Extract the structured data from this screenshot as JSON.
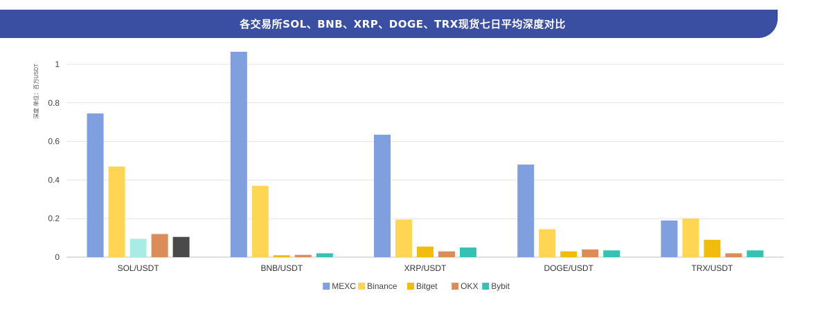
{
  "header": {
    "title": "各交易所SOL、BNB、XRP、DOGE、TRX现货七日平均深度对比"
  },
  "chart_data": {
    "type": "bar",
    "ylabel": "深度 单位：百万USDT",
    "ylim": [
      0,
      1.1
    ],
    "yticks": [
      0,
      0.2,
      0.4,
      0.6,
      0.8,
      1
    ],
    "ytick_labels": [
      "0",
      "0.2",
      "0.4",
      "0.6",
      "0.8",
      "1"
    ],
    "grid": true,
    "legend_position": "bottom",
    "categories": [
      "SOL/USDT",
      "BNB/USDT",
      "XRP/USDT",
      "DOGE/USDT",
      "TRX/USDT"
    ],
    "series": [
      {
        "name": "MEXC",
        "color": "#7f9fdf",
        "values": [
          0.745,
          1.065,
          0.635,
          0.48,
          0.19
        ]
      },
      {
        "name": "Binance",
        "color": "#ffd653",
        "values": [
          0.47,
          0.37,
          0.195,
          0.145,
          0.2
        ]
      },
      {
        "name": "Bitget",
        "color": "#f2bc0e",
        "values": [
          0.095,
          0.01,
          0.055,
          0.03,
          0.09
        ]
      },
      {
        "name": "OKX",
        "color": "#db8d59",
        "values": [
          0.12,
          0.012,
          0.03,
          0.04,
          0.02
        ]
      },
      {
        "name": "Bybit",
        "color": "#35c2b4",
        "values": [
          0.105,
          0.02,
          0.05,
          0.035,
          0.035
        ]
      }
    ],
    "point_color_overrides": [
      {
        "series": 2,
        "category": 0,
        "color": "#a9ece6"
      },
      {
        "series": 4,
        "category": 0,
        "color": "#4a4a4a"
      }
    ]
  }
}
